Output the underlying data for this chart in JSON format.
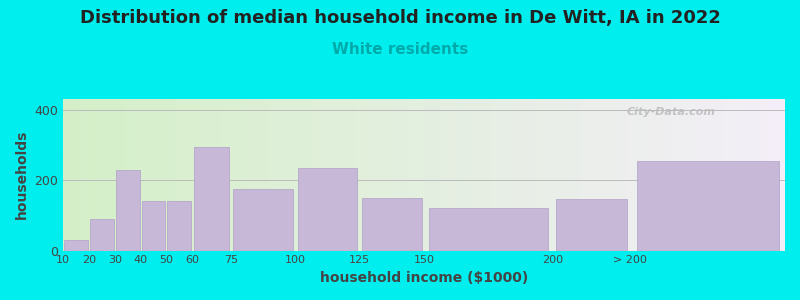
{
  "title": "Distribution of median household income in De Witt, IA in 2022",
  "subtitle": "White residents",
  "xlabel": "household income ($1000)",
  "ylabel": "households",
  "title_fontsize": 13,
  "subtitle_fontsize": 11,
  "subtitle_color": "#00aaaa",
  "background_color": "#00eeee",
  "plot_bg_gradient_left": "#d4f0c8",
  "plot_bg_gradient_right": "#f4eef8",
  "bar_color": "#c8b8d8",
  "bar_edge_color": "#b0a0c8",
  "bar_left_edges": [
    10,
    20,
    30,
    40,
    50,
    60,
    75,
    100,
    125,
    150,
    200,
    230
  ],
  "bar_widths": [
    10,
    10,
    10,
    10,
    10,
    15,
    25,
    25,
    25,
    50,
    30,
    60
  ],
  "values": [
    30,
    90,
    230,
    140,
    140,
    295,
    175,
    235,
    150,
    120,
    145,
    255
  ],
  "xlim": [
    10,
    290
  ],
  "ylim": [
    0,
    430
  ],
  "yticks": [
    0,
    200,
    400
  ],
  "xtick_positions": [
    10,
    20,
    30,
    40,
    50,
    60,
    75,
    100,
    125,
    150,
    200,
    230
  ],
  "xtick_labels": [
    "10",
    "20",
    "30",
    "40",
    "50",
    "60",
    "75",
    "100",
    "125",
    "150",
    "200",
    "> 200"
  ],
  "watermark": "City-Data.com"
}
